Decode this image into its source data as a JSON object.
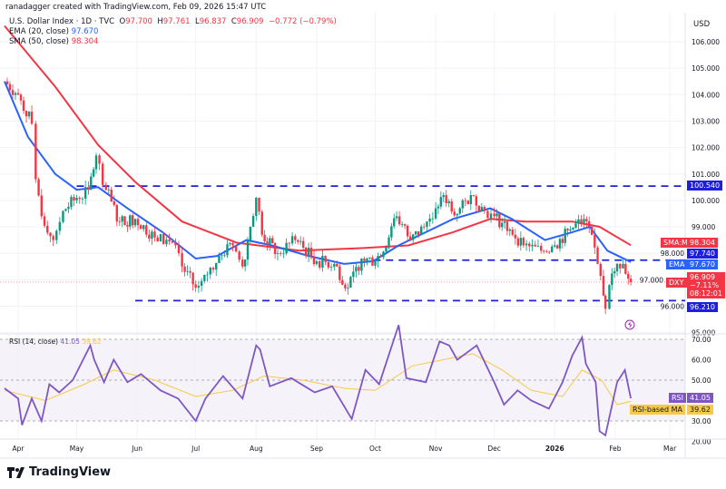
{
  "attribution": "ranadagger created with TradingView.com, Feb 09, 2026 15:47 UTC",
  "legend": {
    "symbol": "U.S. Dollar Index · 1D · TVC",
    "o_label": "O",
    "o": "97.700",
    "h_label": "H",
    "h": "97.761",
    "l_label": "L",
    "l": "96.837",
    "c_label": "C",
    "c": "96.909",
    "change": "−0.772 (−0.79%)",
    "ema_label": "EMA (20, close)",
    "ema_value": "97.670",
    "sma_label": "SMA (50, close)",
    "sma_value": "98.304"
  },
  "currency": "USD",
  "price_tags": {
    "sma_name": "SMA:MA",
    "sma_value": "98.304",
    "level_upper_value": "97.740",
    "ema_name": "EMA",
    "ema_value": "97.670",
    "symbol_name": "DXY",
    "last_price": "96.909",
    "last_change": "−7.11%",
    "countdown": "08:12:01",
    "level_lower_value": "96.210",
    "level_top_value": "100.540"
  },
  "rsi_legend": {
    "label": "RSI (14, close)",
    "rsi": "41.05",
    "ma": "39.62"
  },
  "rsi_tags": {
    "rsi_name": "RSI",
    "rsi_value": "41.05",
    "ma_name": "RSI-based MA",
    "ma_value": "39.62"
  },
  "brand": "TradingView",
  "colors": {
    "up": "#089981",
    "down": "#f23645",
    "ema": "#2962ff",
    "sma": "#f23645",
    "levels": "#1e1ee0",
    "rsi": "#7e57c2",
    "rsi_ma": "#f7c948"
  },
  "chart_data": [
    {
      "type": "candlestick",
      "title": "U.S. Dollar Index · 1D · TVC",
      "ylim": [
        95,
        106.5
      ],
      "y_ticks": [
        "106.000",
        "105.000",
        "104.000",
        "103.000",
        "102.000",
        "101.000",
        "100.000",
        "99.000",
        "98.000",
        "97.000",
        "96.000",
        "95.000"
      ],
      "x_ticks": [
        "Apr",
        "May",
        "Jun",
        "Jul",
        "Aug",
        "Sep",
        "Oct",
        "Nov",
        "Dec",
        "2026",
        "Feb",
        "Mar"
      ],
      "grid": true,
      "close": [
        [
          "2025-03-25",
          104.5
        ],
        [
          "2025-04-01",
          104.0
        ],
        [
          "2025-04-08",
          102.9
        ],
        [
          "2025-04-10",
          100.8
        ],
        [
          "2025-04-13",
          99.4
        ],
        [
          "2025-04-19",
          98.5
        ],
        [
          "2025-04-24",
          99.6
        ],
        [
          "2025-05-01",
          100.1
        ],
        [
          "2025-05-07",
          100.4
        ],
        [
          "2025-05-11",
          101.7
        ],
        [
          "2025-05-16",
          100.4
        ],
        [
          "2025-05-23",
          99.2
        ],
        [
          "2025-05-31",
          99.3
        ],
        [
          "2025-06-10",
          98.6
        ],
        [
          "2025-06-19",
          98.4
        ],
        [
          "2025-06-24",
          97.5
        ],
        [
          "2025-07-01",
          96.7
        ],
        [
          "2025-07-07",
          97.2
        ],
        [
          "2025-07-13",
          97.9
        ],
        [
          "2025-07-20",
          98.3
        ],
        [
          "2025-07-25",
          97.5
        ],
        [
          "2025-07-29",
          99.0
        ],
        [
          "2025-08-01",
          100.1
        ],
        [
          "2025-08-04",
          98.7
        ],
        [
          "2025-08-12",
          98.0
        ],
        [
          "2025-08-21",
          98.5
        ],
        [
          "2025-09-01",
          97.7
        ],
        [
          "2025-09-10",
          97.6
        ],
        [
          "2025-09-17",
          96.7
        ],
        [
          "2025-09-24",
          97.8
        ],
        [
          "2025-10-01",
          97.7
        ],
        [
          "2025-10-08",
          98.6
        ],
        [
          "2025-10-12",
          99.4
        ],
        [
          "2025-10-19",
          98.5
        ],
        [
          "2025-10-26",
          99.0
        ],
        [
          "2025-11-01",
          99.7
        ],
        [
          "2025-11-05",
          100.2
        ],
        [
          "2025-11-12",
          99.5
        ],
        [
          "2025-11-19",
          100.2
        ],
        [
          "2025-11-26",
          99.6
        ],
        [
          "2025-12-01",
          99.4
        ],
        [
          "2025-12-09",
          98.9
        ],
        [
          "2025-12-16",
          98.3
        ],
        [
          "2025-12-25",
          98.1
        ],
        [
          "2026-01-01",
          98.3
        ],
        [
          "2026-01-09",
          98.9
        ],
        [
          "2026-01-16",
          99.3
        ],
        [
          "2026-01-20",
          98.7
        ],
        [
          "2026-01-23",
          97.6
        ],
        [
          "2026-01-26",
          96.4
        ],
        [
          "2026-01-27",
          95.9
        ],
        [
          "2026-01-29",
          96.8
        ],
        [
          "2026-02-02",
          97.6
        ],
        [
          "2026-02-05",
          97.6
        ],
        [
          "2026-02-09",
          96.909
        ]
      ],
      "ema20": [
        [
          "2025-03-25",
          104.5
        ],
        [
          "2025-04-06",
          102.4
        ],
        [
          "2025-04-20",
          101.0
        ],
        [
          "2025-05-01",
          100.4
        ],
        [
          "2025-05-12",
          100.5
        ],
        [
          "2025-05-27",
          99.7
        ],
        [
          "2025-06-14",
          98.8
        ],
        [
          "2025-07-01",
          97.8
        ],
        [
          "2025-07-12",
          97.9
        ],
        [
          "2025-07-27",
          98.5
        ],
        [
          "2025-08-09",
          98.3
        ],
        [
          "2025-08-28",
          97.9
        ],
        [
          "2025-09-15",
          97.6
        ],
        [
          "2025-09-30",
          97.7
        ],
        [
          "2025-10-13",
          98.3
        ],
        [
          "2025-10-27",
          98.8
        ],
        [
          "2025-11-10",
          99.3
        ],
        [
          "2025-11-29",
          99.7
        ],
        [
          "2025-12-10",
          99.3
        ],
        [
          "2025-12-27",
          98.5
        ],
        [
          "2026-01-10",
          98.8
        ],
        [
          "2026-01-19",
          99.0
        ],
        [
          "2026-01-28",
          98.1
        ],
        [
          "2026-02-09",
          97.67
        ]
      ],
      "sma50": [
        [
          "2025-03-25",
          106.6
        ],
        [
          "2025-04-20",
          104.3
        ],
        [
          "2025-05-12",
          102.1
        ],
        [
          "2025-05-31",
          100.7
        ],
        [
          "2025-06-24",
          99.2
        ],
        [
          "2025-07-22",
          98.4
        ],
        [
          "2025-08-23",
          98.1
        ],
        [
          "2025-09-25",
          98.2
        ],
        [
          "2025-10-18",
          98.3
        ],
        [
          "2025-11-10",
          98.8
        ],
        [
          "2025-11-29",
          99.3
        ],
        [
          "2025-12-17",
          99.2
        ],
        [
          "2026-01-10",
          99.2
        ],
        [
          "2026-01-24",
          99.0
        ],
        [
          "2026-02-09",
          98.304
        ]
      ],
      "levels": [
        {
          "value": 100.54,
          "from": "2025-05-01"
        },
        {
          "value": 97.74,
          "from": "2025-09-30"
        },
        {
          "value": 96.21,
          "from": "2025-05-31"
        }
      ]
    },
    {
      "type": "line",
      "title": "RSI (14, close)",
      "ylim": [
        17,
        72
      ],
      "y_ticks": [
        "70.00",
        "60.00",
        "50.00",
        "30.00",
        "20.00"
      ],
      "bands": [
        30,
        50,
        70
      ],
      "rsi": [
        [
          "2025-03-25",
          46
        ],
        [
          "2025-04-01",
          41
        ],
        [
          "2025-04-03",
          28
        ],
        [
          "2025-04-08",
          41
        ],
        [
          "2025-04-13",
          30
        ],
        [
          "2025-04-17",
          48
        ],
        [
          "2025-04-22",
          44
        ],
        [
          "2025-04-29",
          50
        ],
        [
          "2025-05-08",
          67
        ],
        [
          "2025-05-10",
          60
        ],
        [
          "2025-05-15",
          49
        ],
        [
          "2025-05-20",
          60
        ],
        [
          "2025-05-27",
          49
        ],
        [
          "2025-06-03",
          53
        ],
        [
          "2025-06-13",
          45
        ],
        [
          "2025-06-22",
          41
        ],
        [
          "2025-07-01",
          30
        ],
        [
          "2025-07-06",
          41
        ],
        [
          "2025-07-15",
          52
        ],
        [
          "2025-07-25",
          41
        ],
        [
          "2025-08-01",
          67
        ],
        [
          "2025-08-03",
          65
        ],
        [
          "2025-08-08",
          47
        ],
        [
          "2025-08-19",
          51
        ],
        [
          "2025-08-31",
          44
        ],
        [
          "2025-09-09",
          47
        ],
        [
          "2025-09-19",
          31
        ],
        [
          "2025-09-26",
          55
        ],
        [
          "2025-10-03",
          48
        ],
        [
          "2025-10-13",
          77
        ],
        [
          "2025-10-17",
          51
        ],
        [
          "2025-10-27",
          49
        ],
        [
          "2025-11-03",
          69
        ],
        [
          "2025-11-08",
          67
        ],
        [
          "2025-11-12",
          60
        ],
        [
          "2025-11-22",
          67
        ],
        [
          "2025-12-01",
          49
        ],
        [
          "2025-12-06",
          38
        ],
        [
          "2025-12-13",
          45
        ],
        [
          "2025-12-20",
          40
        ],
        [
          "2025-12-29",
          36
        ],
        [
          "2026-01-05",
          49
        ],
        [
          "2026-01-10",
          62
        ],
        [
          "2026-01-15",
          71
        ],
        [
          "2026-01-17",
          58
        ],
        [
          "2026-01-22",
          49
        ],
        [
          "2026-01-24",
          25
        ],
        [
          "2026-01-27",
          23
        ],
        [
          "2026-02-02",
          49
        ],
        [
          "2026-02-06",
          55
        ],
        [
          "2026-02-09",
          41.05
        ]
      ],
      "rsi_ma": [
        [
          "2025-03-25",
          45
        ],
        [
          "2025-04-15",
          40
        ],
        [
          "2025-05-05",
          48
        ],
        [
          "2025-05-20",
          55
        ],
        [
          "2025-06-10",
          50
        ],
        [
          "2025-07-01",
          42
        ],
        [
          "2025-07-20",
          45
        ],
        [
          "2025-08-05",
          52
        ],
        [
          "2025-08-25",
          50
        ],
        [
          "2025-09-15",
          46
        ],
        [
          "2025-10-01",
          45
        ],
        [
          "2025-10-20",
          57
        ],
        [
          "2025-11-05",
          60
        ],
        [
          "2025-11-20",
          63
        ],
        [
          "2025-12-05",
          55
        ],
        [
          "2025-12-20",
          45
        ],
        [
          "2026-01-05",
          42
        ],
        [
          "2026-01-15",
          55
        ],
        [
          "2026-01-25",
          50
        ],
        [
          "2026-02-02",
          38
        ],
        [
          "2026-02-09",
          39.62
        ]
      ]
    }
  ]
}
